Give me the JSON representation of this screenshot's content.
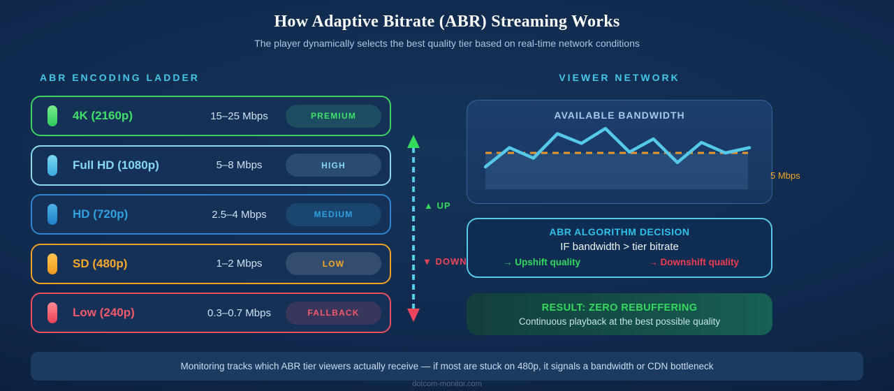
{
  "header": {
    "title": "How Adaptive Bitrate (ABR) Streaming Works",
    "subtitle": "The player dynamically selects the best quality tier based on real-time network conditions"
  },
  "ladder": {
    "heading": "ABR ENCODING LADDER",
    "tiers": [
      {
        "name": "4K (2160p)",
        "bitrate": "15–25 Mbps",
        "badge": "PREMIUM",
        "accent_text": "#3ee06a",
        "accent_border": "#3bd163",
        "badge_bg": "rgba(62,224,150,0.16)",
        "icon_top": "#7bef8e",
        "icon_bottom": "#2ec95c"
      },
      {
        "name": "Full HD (1080p)",
        "bitrate": "5–8 Mbps",
        "badge": "HIGH",
        "accent_text": "#85d9f0",
        "accent_border": "#8ed9ec",
        "badge_bg": "rgba(137,214,238,0.17)",
        "icon_top": "#7dd8f2",
        "icon_bottom": "#38a8dd"
      },
      {
        "name": "HD (720p)",
        "bitrate": "2.5–4 Mbps",
        "badge": "MEDIUM",
        "accent_text": "#2fa1e0",
        "accent_border": "#2e86d0",
        "badge_bg": "rgba(47,159,224,0.18)",
        "icon_top": "#4fb3e8",
        "icon_bottom": "#1f7fc9"
      },
      {
        "name": "SD (480p)",
        "bitrate": "1–2 Mbps",
        "badge": "LOW",
        "accent_text": "#f5a829",
        "accent_border": "#efa125",
        "badge_bg": "rgba(190,200,210,0.18)",
        "icon_top": "#ffc751",
        "icon_bottom": "#ef9a1e"
      },
      {
        "name": "Low (240p)",
        "bitrate": "0.3–0.7 Mbps",
        "badge": "FALLBACK",
        "accent_text": "#f25a6b",
        "accent_border": "#ee4d5e",
        "badge_bg": "rgba(240,80,120,0.16)",
        "icon_top": "#ff8a93",
        "icon_bottom": "#e94158"
      }
    ]
  },
  "shift_arrow": {
    "up_label": "▲ UP",
    "down_label": "▼ DOWN",
    "up_color": "#35d95e",
    "down_color": "#f0455a",
    "dash_color": "#58c8ea"
  },
  "network": {
    "heading": "VIEWER NETWORK",
    "bandwidth_panel": {
      "title": "AVAILABLE BANDWIDTH",
      "threshold_label": "5 Mbps"
    },
    "decision_panel": {
      "title": "ABR ALGORITHM DECISION",
      "condition": "IF bandwidth > tier bitrate",
      "upshift": "→ Upshift quality",
      "downshift": "→ Downshift quality"
    },
    "result_panel": {
      "title": "RESULT: ZERO REBUFFERING",
      "subtitle": "Continuous playback at the best possible quality"
    }
  },
  "footer_note": "Monitoring tracks which ABR tier viewers actually receive — if most are stuck on 480p, it signals a bandwidth or CDN bottleneck",
  "site": "dotcom-monitor.com",
  "chart_data": {
    "type": "line",
    "title": "AVAILABLE BANDWIDTH",
    "ylabel": "Mbps",
    "x": [
      0,
      1,
      2,
      3,
      4,
      5,
      6,
      7,
      8,
      9,
      10,
      11
    ],
    "values": [
      3.4,
      5.6,
      4.4,
      7.2,
      6.1,
      7.8,
      5.1,
      6.6,
      3.9,
      6.2,
      5.0,
      5.6
    ],
    "ylim": [
      2,
      9
    ],
    "grid": false,
    "legend": "none",
    "line_color": "#56c9ea",
    "fill_below_threshold_color": "rgba(90,140,190,0.22)",
    "threshold": {
      "value": 5,
      "label": "5 Mbps",
      "color": "#e8962e",
      "style": "dashed"
    }
  }
}
